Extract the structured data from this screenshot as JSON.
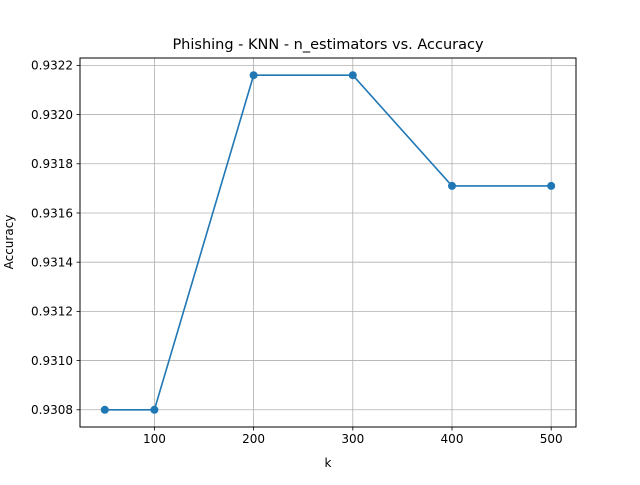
{
  "chart_data": {
    "type": "line",
    "title": "Phishing - KNN - n_estimators vs. Accuracy",
    "xlabel": "k",
    "ylabel": "Accuracy",
    "x": [
      50,
      100,
      200,
      300,
      400,
      500
    ],
    "series": [
      {
        "values": [
          0.9308,
          0.9308,
          0.93216,
          0.93216,
          0.93171,
          0.93171
        ]
      }
    ],
    "xlim": [
      25,
      525
    ],
    "ylim": [
      0.93073,
      0.93223
    ],
    "xticks": [
      100,
      200,
      300,
      400,
      500
    ],
    "xtick_labels": [
      "100",
      "200",
      "300",
      "400",
      "500"
    ],
    "yticks": [
      0.9308,
      0.931,
      0.9312,
      0.9314,
      0.9316,
      0.9318,
      0.932,
      0.9322
    ],
    "ytick_labels": [
      "0.9308",
      "0.9310",
      "0.9312",
      "0.9314",
      "0.9316",
      "0.9318",
      "0.9320",
      "0.9322"
    ],
    "grid": true,
    "markers": true,
    "colors": {
      "series": "#1f77b4",
      "grid": "#b0b0b0",
      "axes": "#000000"
    }
  }
}
